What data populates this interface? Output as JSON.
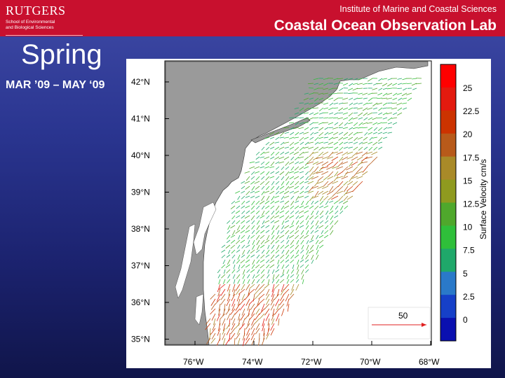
{
  "header": {
    "logo_name": "RUTGERS",
    "logo_sub_line1": "School of Environmental",
    "logo_sub_line2": "and Biological Sciences",
    "institute": "Institute of Marine and Coastal Sciences",
    "lab": "Coastal Ocean Observation Lab"
  },
  "slide": {
    "season": "Spring",
    "dates": "MAR ’09 – MAY ‘09"
  },
  "map": {
    "lat_labels": [
      "42°N",
      "41°N",
      "40°N",
      "39°N",
      "38°N",
      "37°N",
      "36°N",
      "35°N"
    ],
    "lon_labels": [
      "76°W",
      "74°W",
      "72°W",
      "70°W",
      "68°W"
    ],
    "scale_label": "50",
    "colorbar_title": "Surface Velocity cm/s",
    "colorbar_ticks": [
      "25",
      "22.5",
      "20",
      "17.5",
      "15",
      "12.5",
      "10",
      "7.5",
      "5",
      "2.5",
      "0"
    ],
    "colorbar_colors": [
      "#ff0000",
      "#e31a0f",
      "#cc3300",
      "#b85a1a",
      "#a98a28",
      "#8f9a1f",
      "#4fa82c",
      "#2fbf3a",
      "#1fa86a",
      "#2a79c9",
      "#1640c8",
      "#0a10b0"
    ]
  }
}
